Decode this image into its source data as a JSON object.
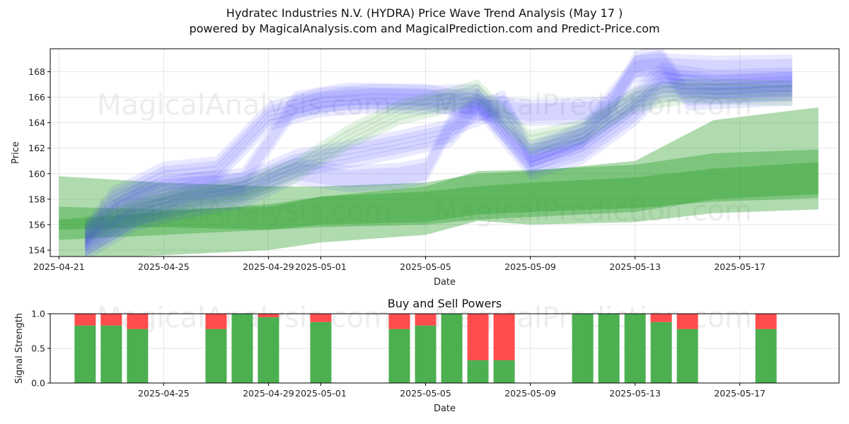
{
  "header": {
    "title": "Hydratec Industries N.V. (HYDRA) Price Wave Trend Analysis (May 17 )",
    "subtitle": "powered by MagicalAnalysis.com and MagicalPrediction.com and Predict-Price.com"
  },
  "watermarks": [
    "MagicalAnalysis.com",
    "MagicalPrediction.com"
  ],
  "colors": {
    "green": "#2ca02c",
    "blue": "#4a4aff",
    "buy": "#4caf50",
    "sell": "#ff4d4d"
  },
  "chart_data": [
    {
      "type": "area",
      "title": "",
      "xlabel": "Date",
      "ylabel": "Price",
      "x_range": [
        "2025-04-20T16:00",
        "2025-05-20T19:00"
      ],
      "ylim": [
        153.5,
        169.8
      ],
      "xticks": [
        "2025-04-21",
        "2025-04-25",
        "2025-04-29",
        "2025-05-01",
        "2025-05-05",
        "2025-05-09",
        "2025-05-13",
        "2025-05-17"
      ],
      "yticks": [
        154,
        156,
        158,
        160,
        162,
        164,
        166,
        168
      ],
      "grid": true,
      "series": [
        {
          "color": "#4a4aff",
          "band": 0.9,
          "x": [
            "2025-04-22",
            "2025-04-23",
            "2025-04-25",
            "2025-04-27",
            "2025-04-29",
            "2025-05-01",
            "2025-05-03",
            "2025-05-05",
            "2025-05-07",
            "2025-05-09",
            "2025-05-11",
            "2025-05-13",
            "2025-05-14",
            "2025-05-16",
            "2025-05-19"
          ],
          "y": [
            155.0,
            157.8,
            159.8,
            160.2,
            164.5,
            165.6,
            165.9,
            165.8,
            165.9,
            161.2,
            162.8,
            165.8,
            167.6,
            167.0,
            167.2
          ]
        },
        {
          "color": "#4a4aff",
          "band": 0.8,
          "x": [
            "2025-04-22",
            "2025-04-24",
            "2025-04-26",
            "2025-04-28",
            "2025-04-30",
            "2025-05-02",
            "2025-05-04",
            "2025-05-06",
            "2025-05-07",
            "2025-05-09",
            "2025-05-11",
            "2025-05-13",
            "2025-05-14",
            "2025-05-16",
            "2025-05-19"
          ],
          "y": [
            154.6,
            157.0,
            158.4,
            159.0,
            160.8,
            161.5,
            162.3,
            163.2,
            165.6,
            160.6,
            161.8,
            164.8,
            166.8,
            166.6,
            166.9
          ]
        },
        {
          "color": "#4a4aff",
          "band": 0.7,
          "x": [
            "2025-04-22",
            "2025-04-24",
            "2025-04-26",
            "2025-04-28",
            "2025-04-30",
            "2025-05-02",
            "2025-05-04",
            "2025-05-05",
            "2025-05-06",
            "2025-05-08",
            "2025-05-09",
            "2025-05-11",
            "2025-05-13",
            "2025-05-14",
            "2025-05-16",
            "2025-05-19"
          ],
          "y": [
            154.2,
            156.6,
            157.6,
            158.3,
            160.2,
            159.6,
            159.8,
            160.2,
            164.0,
            165.5,
            161.5,
            163.0,
            168.2,
            168.4,
            168.2,
            168.3
          ]
        },
        {
          "color": "#4a4aff",
          "band": 0.7,
          "x": [
            "2025-04-22",
            "2025-04-24",
            "2025-04-26",
            "2025-04-28",
            "2025-04-30",
            "2025-05-02",
            "2025-05-05",
            "2025-05-07",
            "2025-05-09",
            "2025-05-12",
            "2025-05-13",
            "2025-05-14",
            "2025-05-15",
            "2025-05-19"
          ],
          "y": [
            155.3,
            158.2,
            159.0,
            159.4,
            165.4,
            166.1,
            166.0,
            165.2,
            164.8,
            165.0,
            168.6,
            169.0,
            166.0,
            166.4
          ]
        },
        {
          "color": "#2ca02c",
          "band": 0.6,
          "x": [
            "2025-04-22",
            "2025-04-24",
            "2025-04-26",
            "2025-04-28",
            "2025-04-30",
            "2025-05-02",
            "2025-05-04",
            "2025-05-06",
            "2025-05-07",
            "2025-05-09",
            "2025-05-11",
            "2025-05-13",
            "2025-05-15",
            "2025-05-19"
          ],
          "y": [
            155.6,
            157.0,
            158.0,
            158.8,
            160.2,
            162.8,
            164.8,
            165.8,
            166.4,
            162.4,
            163.3,
            165.8,
            166.5,
            166.3
          ]
        }
      ],
      "wedges": [
        {
          "color": "#2ca02c",
          "x": [
            "2025-04-21",
            "2025-04-25",
            "2025-04-29",
            "2025-05-01",
            "2025-05-05",
            "2025-05-07",
            "2025-05-09",
            "2025-05-13",
            "2025-05-16",
            "2025-05-20"
          ],
          "lo": [
            154.8,
            155.2,
            155.6,
            156.0,
            156.2,
            156.8,
            157.0,
            157.3,
            157.8,
            158.1
          ],
          "hi": [
            157.4,
            157.2,
            157.4,
            158.2,
            159.0,
            160.2,
            160.3,
            160.7,
            161.6,
            161.9
          ]
        },
        {
          "color": "#2ca02c",
          "x": [
            "2025-04-21",
            "2025-04-25",
            "2025-04-29",
            "2025-05-01",
            "2025-05-05",
            "2025-05-07",
            "2025-05-09",
            "2025-05-13",
            "2025-05-16",
            "2025-05-20"
          ],
          "lo": [
            153.3,
            153.6,
            154.0,
            154.6,
            155.2,
            156.3,
            156.0,
            156.2,
            156.9,
            157.2
          ],
          "hi": [
            159.8,
            159.3,
            159.0,
            159.0,
            159.3,
            160.0,
            160.2,
            161.0,
            164.2,
            165.2
          ]
        },
        {
          "color": "#2ca02c",
          "x": [
            "2025-04-21",
            "2025-04-25",
            "2025-04-29",
            "2025-05-01",
            "2025-05-05",
            "2025-05-07",
            "2025-05-09",
            "2025-05-13",
            "2025-05-16",
            "2025-05-20"
          ],
          "lo": [
            155.6,
            155.8,
            155.6,
            155.8,
            156.0,
            156.4,
            156.6,
            157.0,
            158.0,
            158.4
          ],
          "hi": [
            156.4,
            157.0,
            157.6,
            158.2,
            158.6,
            159.0,
            159.3,
            159.7,
            160.4,
            160.9
          ]
        }
      ]
    },
    {
      "type": "bar",
      "title": "Buy and Sell Powers",
      "xlabel": "Date",
      "ylabel": "Signal Strength",
      "ylim": [
        0,
        1
      ],
      "yticks": [
        "0.0",
        "0.5",
        "1.0"
      ],
      "xticks": [
        "2025-04-25",
        "2025-04-29",
        "2025-05-01",
        "2025-05-05",
        "2025-05-09",
        "2025-05-13",
        "2025-05-17"
      ],
      "grid": true,
      "dates": [
        "2025-04-22",
        "2025-04-23",
        "2025-04-24",
        "2025-04-27",
        "2025-04-28",
        "2025-04-29",
        "2025-05-01",
        "2025-05-04",
        "2025-05-05",
        "2025-05-06",
        "2025-05-07",
        "2025-05-08",
        "2025-05-11",
        "2025-05-12",
        "2025-05-13",
        "2025-05-14",
        "2025-05-15",
        "2025-05-18"
      ],
      "series": [
        {
          "name": "buy",
          "values": [
            0.83,
            0.83,
            0.78,
            0.78,
            1.0,
            0.95,
            0.88,
            0.78,
            0.83,
            1.0,
            0.33,
            0.33,
            1.0,
            1.0,
            1.0,
            0.88,
            0.78,
            0.78
          ]
        },
        {
          "name": "sell",
          "values": [
            0.17,
            0.17,
            0.22,
            0.22,
            0.0,
            0.05,
            0.12,
            0.22,
            0.17,
            0.0,
            0.67,
            0.67,
            0.0,
            0.0,
            0.0,
            0.12,
            0.22,
            0.22
          ]
        }
      ]
    }
  ]
}
